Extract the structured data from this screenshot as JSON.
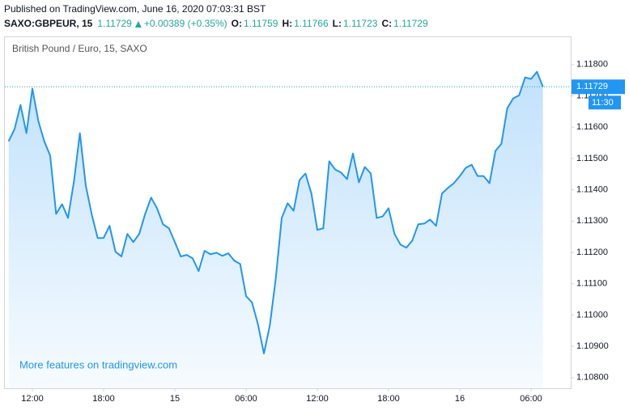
{
  "header": {
    "published": "Published on TradingView.com, June 16, 2020 07:03:31 BST",
    "symbol": "SAXO:GBPEUR, 15",
    "last": "1.11729",
    "change": "+0.00389 (+0.35%)",
    "ohlc": [
      {
        "label": "O:",
        "value": "1.11759"
      },
      {
        "label": "H:",
        "value": "1.11766"
      },
      {
        "label": "L:",
        "value": "1.11723"
      },
      {
        "label": "C:",
        "value": "1.11729"
      }
    ]
  },
  "chart_data": {
    "type": "area",
    "title": "British Pound / Euro, 15, SAXO",
    "watermark": "More features on tradingview.com",
    "countdown": "11:30",
    "categories": [
      null,
      null,
      null,
      null,
      "12:00",
      null,
      null,
      null,
      null,
      null,
      null,
      null,
      null,
      null,
      null,
      null,
      "18:00",
      null,
      null,
      null,
      null,
      null,
      null,
      null,
      null,
      null,
      null,
      null,
      "15",
      null,
      null,
      null,
      null,
      null,
      null,
      null,
      null,
      null,
      null,
      null,
      "06:00",
      null,
      null,
      null,
      null,
      null,
      null,
      null,
      null,
      null,
      null,
      null,
      "12:00",
      null,
      null,
      null,
      null,
      null,
      null,
      null,
      null,
      null,
      null,
      null,
      "18:00",
      null,
      null,
      null,
      null,
      null,
      null,
      null,
      null,
      null,
      null,
      null,
      "16",
      null,
      null,
      null,
      null,
      null,
      null,
      null,
      null,
      null,
      null,
      null,
      "06:00",
      null,
      null
    ],
    "series": [
      {
        "name": "SAXO:GBPEUR",
        "color": "#2196f3",
        "values": [
          1.11555,
          1.11594,
          1.11671,
          1.11581,
          1.11723,
          1.1162,
          1.11555,
          1.11509,
          1.11323,
          1.11354,
          1.1131,
          1.11426,
          1.11581,
          1.11413,
          1.11321,
          1.11246,
          1.11246,
          1.11285,
          1.11202,
          1.11187,
          1.11259,
          1.11233,
          1.11259,
          1.11323,
          1.11375,
          1.11341,
          1.1129,
          1.11277,
          1.11233,
          1.11187,
          1.11192,
          1.11181,
          1.1114,
          1.11205,
          1.11194,
          1.11199,
          1.11189,
          1.11197,
          1.11174,
          1.11163,
          1.1106,
          1.1104,
          1.1097,
          1.10877,
          1.10967,
          1.11117,
          1.1131,
          1.11357,
          1.11333,
          1.11431,
          1.11452,
          1.11388,
          1.11272,
          1.11277,
          1.11491,
          1.11465,
          1.11455,
          1.11434,
          1.11516,
          1.11424,
          1.11473,
          1.11452,
          1.1131,
          1.11315,
          1.11341,
          1.11259,
          1.11225,
          1.11215,
          1.11238,
          1.1129,
          1.11292,
          1.11305,
          1.11285,
          1.11388,
          1.11406,
          1.11421,
          1.11444,
          1.1147,
          1.1148,
          1.11444,
          1.11444,
          1.11421,
          1.11524,
          1.11547,
          1.11661,
          1.11692,
          1.11702,
          1.11759,
          1.11754,
          1.11777,
          1.11729
        ]
      }
    ],
    "ylim": [
      1.10766,
      1.1189
    ],
    "yticks": [
      {
        "value": 1.108,
        "label": "1.10800"
      },
      {
        "value": 1.109,
        "label": "1.10900"
      },
      {
        "value": 1.11,
        "label": "1.11000"
      },
      {
        "value": 1.111,
        "label": "1.11100"
      },
      {
        "value": 1.112,
        "label": "1.11200"
      },
      {
        "value": 1.113,
        "label": "1.11300"
      },
      {
        "value": 1.114,
        "label": "1.11400"
      },
      {
        "value": 1.115,
        "label": "1.11500"
      },
      {
        "value": 1.116,
        "label": "1.11600"
      },
      {
        "value": 1.117,
        "label": "1.11700"
      },
      {
        "value": 1.118,
        "label": "1.11800"
      }
    ],
    "grid": false
  }
}
